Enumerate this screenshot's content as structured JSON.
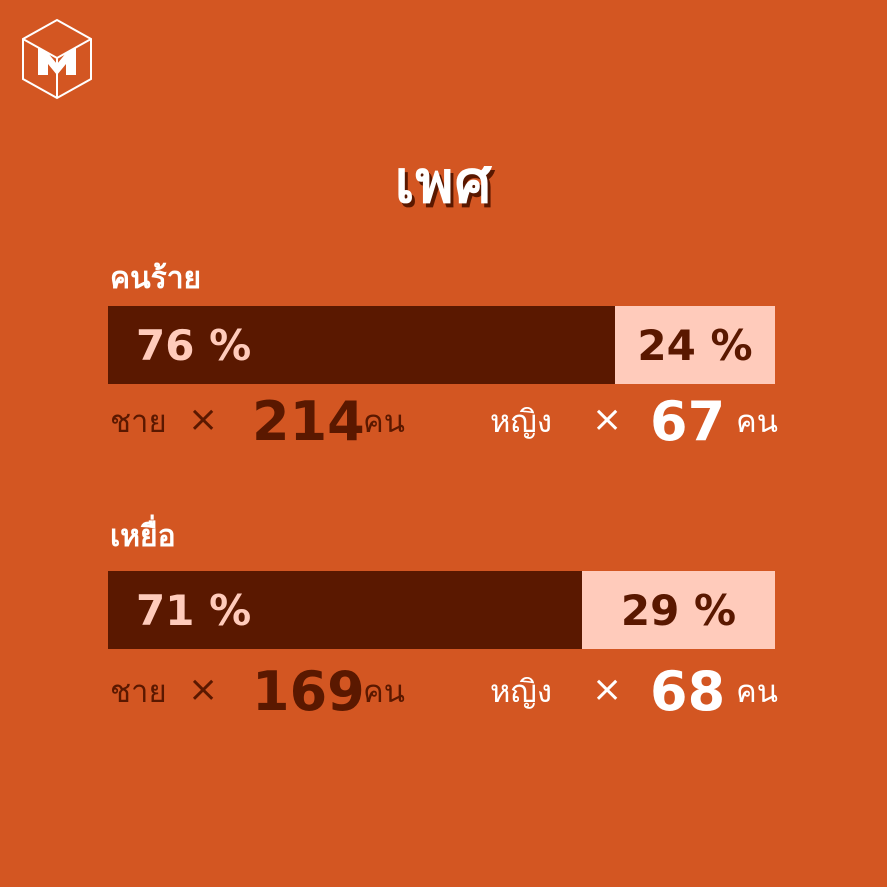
{
  "title": "เพศ",
  "logo_icon": "cube-m-logo-icon",
  "colors": {
    "background": "#d35622",
    "male": "#5a1800",
    "female": "#ffcbbb",
    "white": "#ffffff"
  },
  "chart_data": [
    {
      "type": "bar",
      "stacked": true,
      "orientation": "horizontal",
      "title": "คนร้าย",
      "series": [
        {
          "name": "ชาย",
          "percent_label": "76 %",
          "percent": 76,
          "count": 214
        },
        {
          "name": "หญิง",
          "percent_label": "24 %",
          "percent": 24,
          "count": 67
        }
      ],
      "times_symbol": "×",
      "unit": "คน"
    },
    {
      "type": "bar",
      "stacked": true,
      "orientation": "horizontal",
      "title": "เหยื่อ",
      "series": [
        {
          "name": "ชาย",
          "percent_label": "71 %",
          "percent": 71,
          "count": 169
        },
        {
          "name": "หญิง",
          "percent_label": "29 %",
          "percent": 29,
          "count": 68
        }
      ],
      "times_symbol": "×",
      "unit": "คน"
    }
  ]
}
